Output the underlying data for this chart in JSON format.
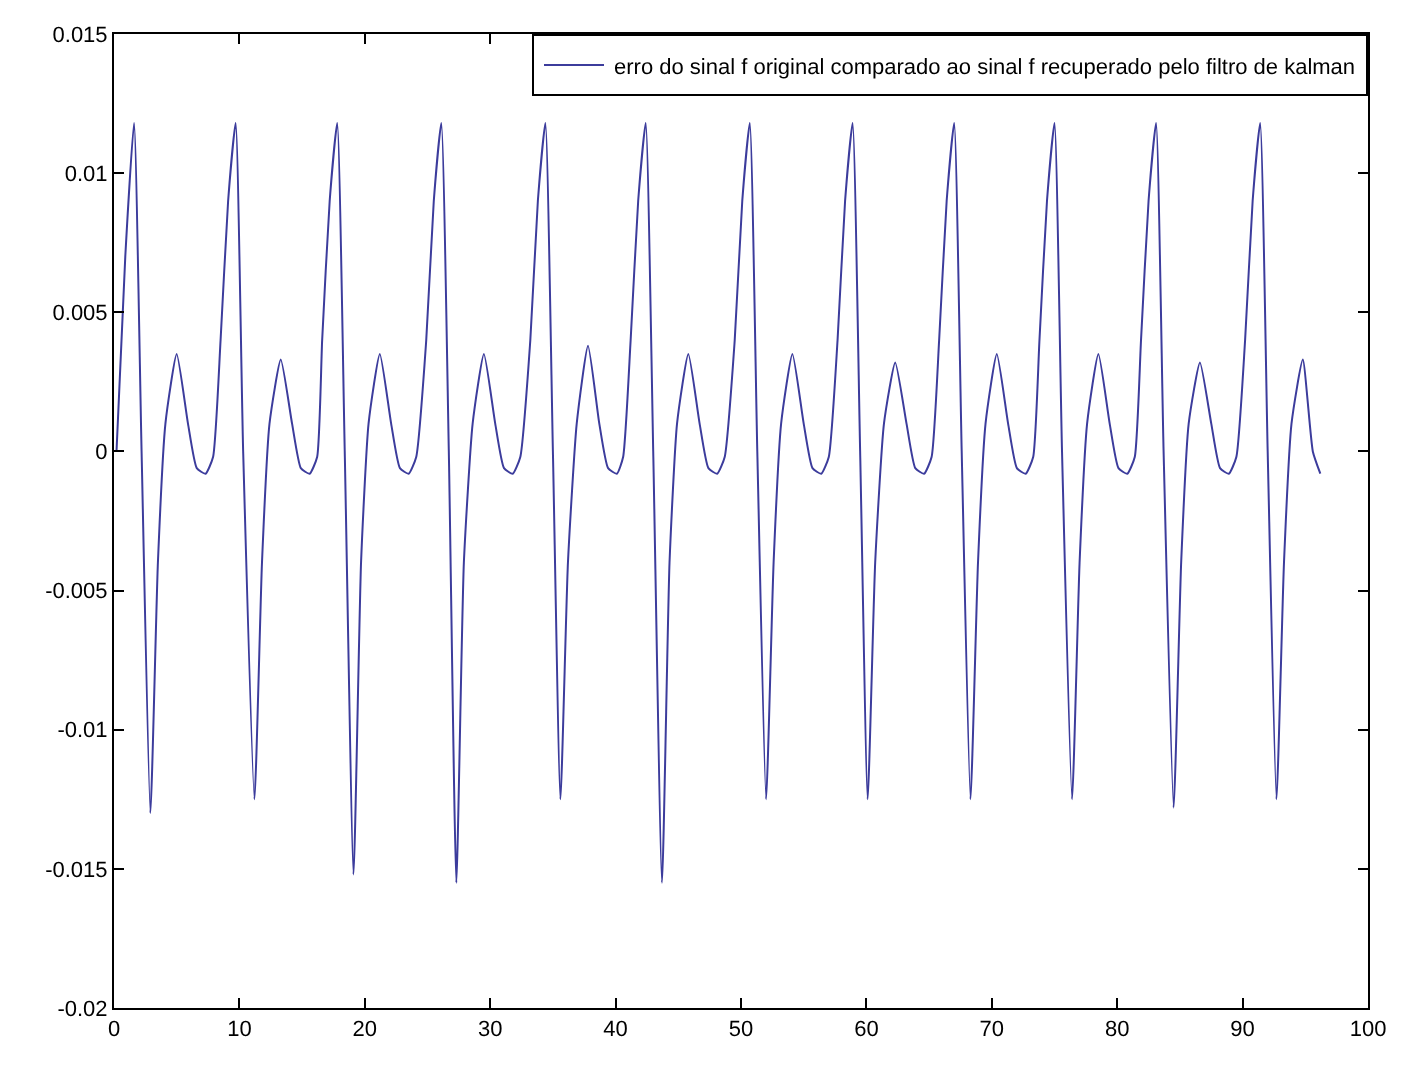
{
  "chart_data": {
    "type": "line",
    "legend": "top right",
    "marker": "none",
    "line_style": "solid",
    "xlim": [
      0,
      100
    ],
    "xticks": [
      0,
      10,
      20,
      30,
      40,
      50,
      60,
      70,
      80,
      90,
      100
    ],
    "ylim": [
      -0.02,
      0.015
    ],
    "yticks": [
      -0.02,
      -0.015,
      -0.01,
      -0.005,
      0,
      0.005,
      0.01,
      0.015
    ],
    "series": [
      {
        "name": "erro do sinal f original comparado ao sinal f recuperado pelo filtro de kalman",
        "color": "#3c3c9c",
        "x": [
          0.2,
          0.9,
          1.6,
          2.2,
          2.9,
          3.5,
          4.1,
          5.0,
          5.9,
          6.6,
          7.3,
          7.9,
          8.5,
          9.1,
          9.7,
          10.3,
          11.2,
          11.8,
          12.4,
          13.3,
          14.2,
          14.9,
          15.6,
          16.2,
          16.6,
          17.2,
          17.8,
          18.4,
          19.1,
          19.7,
          20.3,
          21.2,
          22.1,
          22.8,
          23.5,
          24.1,
          24.9,
          25.5,
          26.1,
          26.7,
          27.3,
          27.9,
          28.6,
          29.5,
          30.4,
          31.1,
          31.8,
          32.4,
          33.2,
          33.8,
          34.4,
          35.0,
          35.6,
          36.2,
          36.9,
          37.8,
          38.7,
          39.4,
          40.1,
          40.6,
          41.2,
          41.8,
          42.4,
          43.0,
          43.7,
          44.3,
          44.9,
          45.8,
          46.7,
          47.4,
          48.1,
          48.7,
          49.5,
          50.1,
          50.7,
          51.3,
          52.0,
          52.6,
          53.2,
          54.1,
          55.0,
          55.7,
          56.4,
          57.0,
          57.7,
          58.3,
          58.9,
          59.5,
          60.1,
          60.7,
          61.4,
          62.3,
          63.2,
          63.9,
          64.6,
          65.2,
          65.8,
          66.4,
          67.0,
          67.6,
          68.3,
          68.9,
          69.5,
          70.4,
          71.3,
          72.0,
          72.7,
          73.3,
          73.8,
          74.4,
          75.0,
          75.6,
          76.4,
          77.0,
          77.6,
          78.5,
          79.4,
          80.1,
          80.8,
          81.4,
          81.9,
          82.5,
          83.1,
          83.7,
          84.5,
          85.1,
          85.7,
          86.6,
          87.5,
          88.2,
          88.9,
          89.5,
          90.2,
          90.8,
          91.4,
          92.0,
          92.7,
          93.3,
          93.9,
          94.8,
          95.6,
          96.2
        ],
        "values": [
          0,
          0.007,
          0.0118,
          0,
          -0.013,
          -0.004,
          0.001,
          0.0035,
          0.001,
          -0.0006,
          -0.0008,
          -0.0002,
          0.004,
          0.009,
          0.0118,
          0,
          -0.0125,
          -0.004,
          0.001,
          0.0033,
          0.001,
          -0.0006,
          -0.0008,
          -0.0002,
          0.004,
          0.009,
          0.0118,
          0,
          -0.0152,
          -0.004,
          0.001,
          0.0035,
          0.001,
          -0.0006,
          -0.0008,
          -0.0002,
          0.004,
          0.009,
          0.0118,
          0,
          -0.0155,
          -0.004,
          0.001,
          0.0035,
          0.001,
          -0.0006,
          -0.0008,
          -0.0002,
          0.004,
          0.009,
          0.0118,
          0,
          -0.0125,
          -0.004,
          0.001,
          0.0038,
          0.001,
          -0.0006,
          -0.0008,
          -0.0002,
          0.004,
          0.009,
          0.0118,
          0,
          -0.0155,
          -0.004,
          0.001,
          0.0035,
          0.001,
          -0.0006,
          -0.0008,
          -0.0002,
          0.004,
          0.009,
          0.0118,
          0,
          -0.0125,
          -0.004,
          0.001,
          0.0035,
          0.001,
          -0.0006,
          -0.0008,
          -0.0002,
          0.004,
          0.009,
          0.0118,
          0,
          -0.0125,
          -0.004,
          0.001,
          0.0032,
          0.001,
          -0.0006,
          -0.0008,
          -0.0002,
          0.004,
          0.009,
          0.0118,
          0,
          -0.0125,
          -0.004,
          0.001,
          0.0035,
          0.001,
          -0.0006,
          -0.0008,
          -0.0002,
          0.004,
          0.009,
          0.0118,
          0,
          -0.0125,
          -0.004,
          0.001,
          0.0035,
          0.001,
          -0.0006,
          -0.0008,
          -0.0002,
          0.004,
          0.009,
          0.0118,
          0,
          -0.0128,
          -0.004,
          0.001,
          0.0032,
          0.001,
          -0.0006,
          -0.0008,
          -0.0002,
          0.004,
          0.009,
          0.0118,
          0,
          -0.0125,
          -0.004,
          0.001,
          0.0033,
          0,
          -0.0008
        ]
      }
    ]
  }
}
